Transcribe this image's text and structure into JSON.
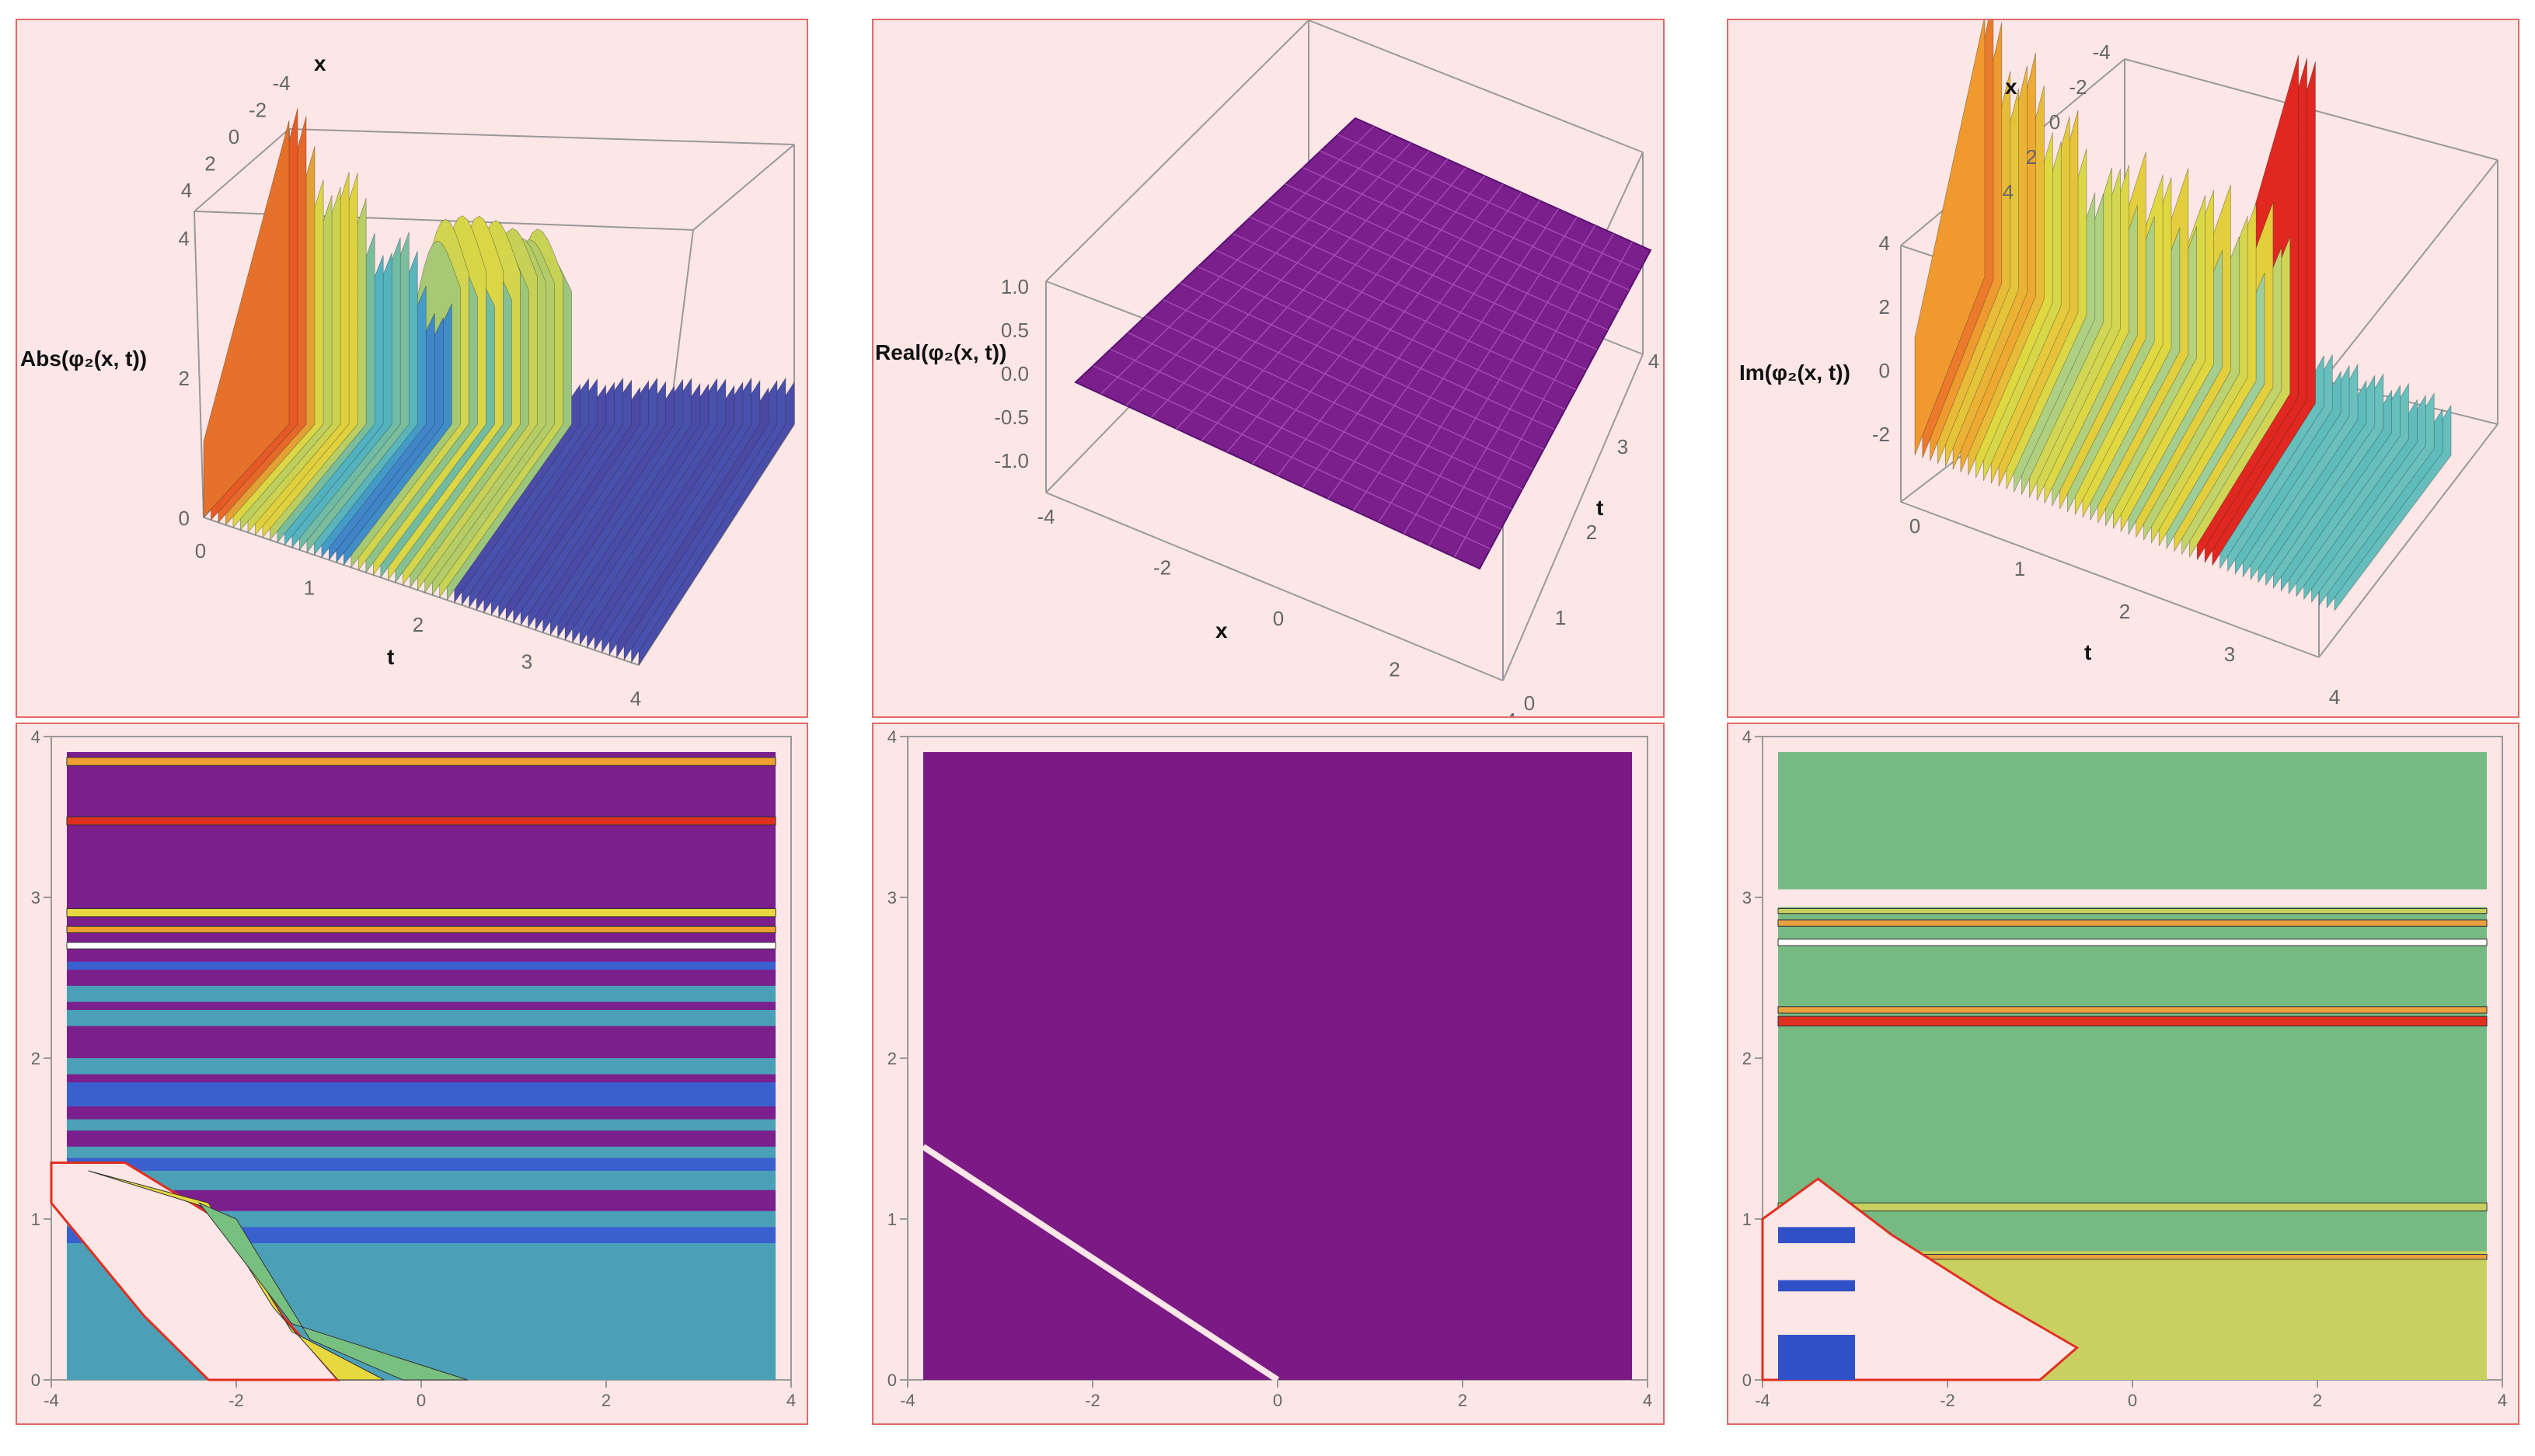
{
  "chart_data": [
    {
      "type": "surface3d",
      "zlabel": "Abs(φ₂(x, t))",
      "xlabel": "x",
      "ylabel": "t",
      "x_ticks": [
        "4",
        "2",
        "0",
        "-2",
        "-4"
      ],
      "t_ticks": [
        "0",
        "1",
        "2",
        "3",
        "4"
      ],
      "z_ticks": [
        "0",
        "2",
        "4"
      ],
      "xlim": [
        -4,
        4
      ],
      "tlim": [
        0,
        4
      ],
      "zlim": [
        0,
        5
      ],
      "colors": {
        "low": "#5a2a8a",
        "mid": "#4ab0c8",
        "high": "#e84020"
      }
    },
    {
      "type": "surface3d",
      "zlabel": "Real(φ₂(x, t))",
      "xlabel": "x",
      "ylabel": "t",
      "x_ticks": [
        "-4",
        "-2",
        "0",
        "2",
        "4"
      ],
      "t_ticks": [
        "0",
        "1",
        "2",
        "3",
        "4"
      ],
      "z_ticks": [
        "1.0",
        "0.5",
        "0.0",
        "-0.5",
        "-1.0"
      ],
      "xlim": [
        -4,
        4
      ],
      "tlim": [
        0,
        4
      ],
      "zlim": [
        -1,
        1
      ],
      "surface_value": 0,
      "colors": {
        "surface": "#7b1f8c",
        "mesh": "#a04cb0"
      }
    },
    {
      "type": "surface3d",
      "zlabel": "Im(φ₂(x, t))",
      "xlabel": "x",
      "ylabel": "t",
      "x_ticks": [
        "-4",
        "-2",
        "0",
        "2",
        "4"
      ],
      "t_ticks": [
        "0",
        "1",
        "2",
        "3",
        "4"
      ],
      "z_ticks": [
        "4",
        "2",
        "0",
        "-2"
      ],
      "xlim": [
        -4,
        4
      ],
      "tlim": [
        0,
        4
      ],
      "zlim": [
        -3,
        5
      ],
      "colors": {
        "low": "#40b0b8",
        "mid": "#e0d840",
        "high": "#e02820"
      }
    },
    {
      "type": "contour",
      "x_ticks": [
        "-4",
        "-2",
        "0",
        "2",
        "4"
      ],
      "y_ticks": [
        "0",
        "1",
        "2",
        "3",
        "4"
      ],
      "xlim": [
        -4,
        4
      ],
      "ylim": [
        0,
        4
      ],
      "colors": {
        "background": "#7b1f8c",
        "blue": "#3a60d0",
        "teal": "#4ba0b8",
        "green": "#78c080",
        "yellow": "#e8d840",
        "orange": "#f0a030",
        "red": "#e03020",
        "gap": "#fde6e6"
      }
    },
    {
      "type": "contour",
      "x_ticks": [
        "-4",
        "-2",
        "0",
        "2",
        "4"
      ],
      "y_ticks": [
        "0",
        "1",
        "2",
        "3",
        "4"
      ],
      "xlim": [
        -4,
        4
      ],
      "ylim": [
        0,
        4
      ],
      "line": {
        "x": [
          -4,
          0
        ],
        "y": [
          1.45,
          0
        ]
      },
      "colors": {
        "background": "#7b1985",
        "line": "#fde6e6"
      }
    },
    {
      "type": "contour",
      "x_ticks": [
        "-4",
        "-2",
        "0",
        "2",
        "4"
      ],
      "y_ticks": [
        "0",
        "1",
        "2",
        "3",
        "4"
      ],
      "xlim": [
        -4,
        4
      ],
      "ylim": [
        0,
        4
      ],
      "colors": {
        "background": "#76b982",
        "yellow": "#c8d060",
        "orange": "#e8a040",
        "red": "#e03020",
        "blue": "#3050c8",
        "gap": "#fde6e6"
      }
    }
  ]
}
